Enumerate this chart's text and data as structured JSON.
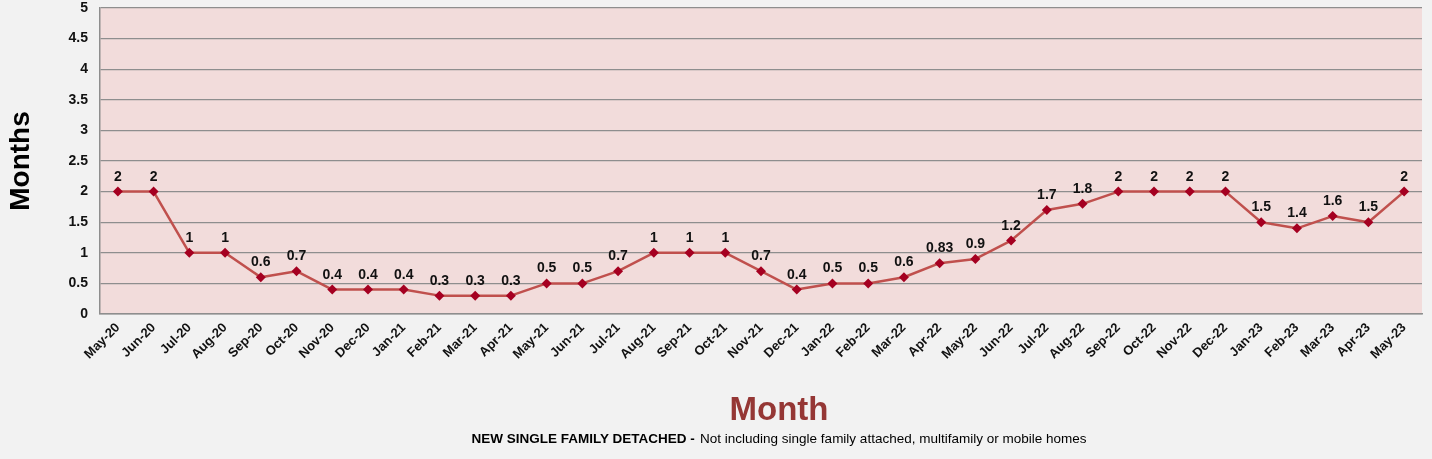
{
  "chart_data": {
    "type": "line",
    "xlabel": "Month",
    "ylabel": "Months",
    "annotations": [
      "NEW SINGLE FAMILY DETACHED -",
      "Not including single family attached, multifamily or mobile homes"
    ],
    "categories": [
      "May-20",
      "Jun-20",
      "Jul-20",
      "Aug-20",
      "Sep-20",
      "Oct-20",
      "Nov-20",
      "Dec-20",
      "Jan-21",
      "Feb-21",
      "Mar-21",
      "Apr-21",
      "May-21",
      "Jun-21",
      "Jul-21",
      "Aug-21",
      "Sep-21",
      "Oct-21",
      "Nov-21",
      "Dec-21",
      "Jan-22",
      "Feb-22",
      "Mar-22",
      "Apr-22",
      "May-22",
      "Jun-22",
      "Jul-22",
      "Aug-22",
      "Sep-22",
      "Oct-22",
      "Nov-22",
      "Dec-22",
      "Jan-23",
      "Feb-23",
      "Mar-23",
      "Apr-23",
      "May-23"
    ],
    "series": [
      {
        "color": "#c0504d",
        "values": [
          2,
          2,
          1,
          1,
          0.6,
          0.7,
          0.4,
          0.4,
          0.4,
          0.3,
          0.3,
          0.3,
          0.5,
          0.5,
          0.7,
          1,
          1,
          1,
          0.7,
          0.4,
          0.5,
          0.5,
          0.6,
          0.83,
          0.9,
          1.2,
          1.7,
          1.8,
          2,
          2,
          2,
          2,
          1.5,
          1.4,
          1.6,
          1.5,
          2
        ]
      }
    ],
    "ylim": [
      0,
      5
    ],
    "yticks": [
      0,
      0.5,
      1,
      1.5,
      2,
      2.5,
      3,
      3.5,
      4,
      4.5,
      5
    ],
    "grid": "y",
    "marker": "diamond",
    "line_style": "solid",
    "data_labels": true
  }
}
